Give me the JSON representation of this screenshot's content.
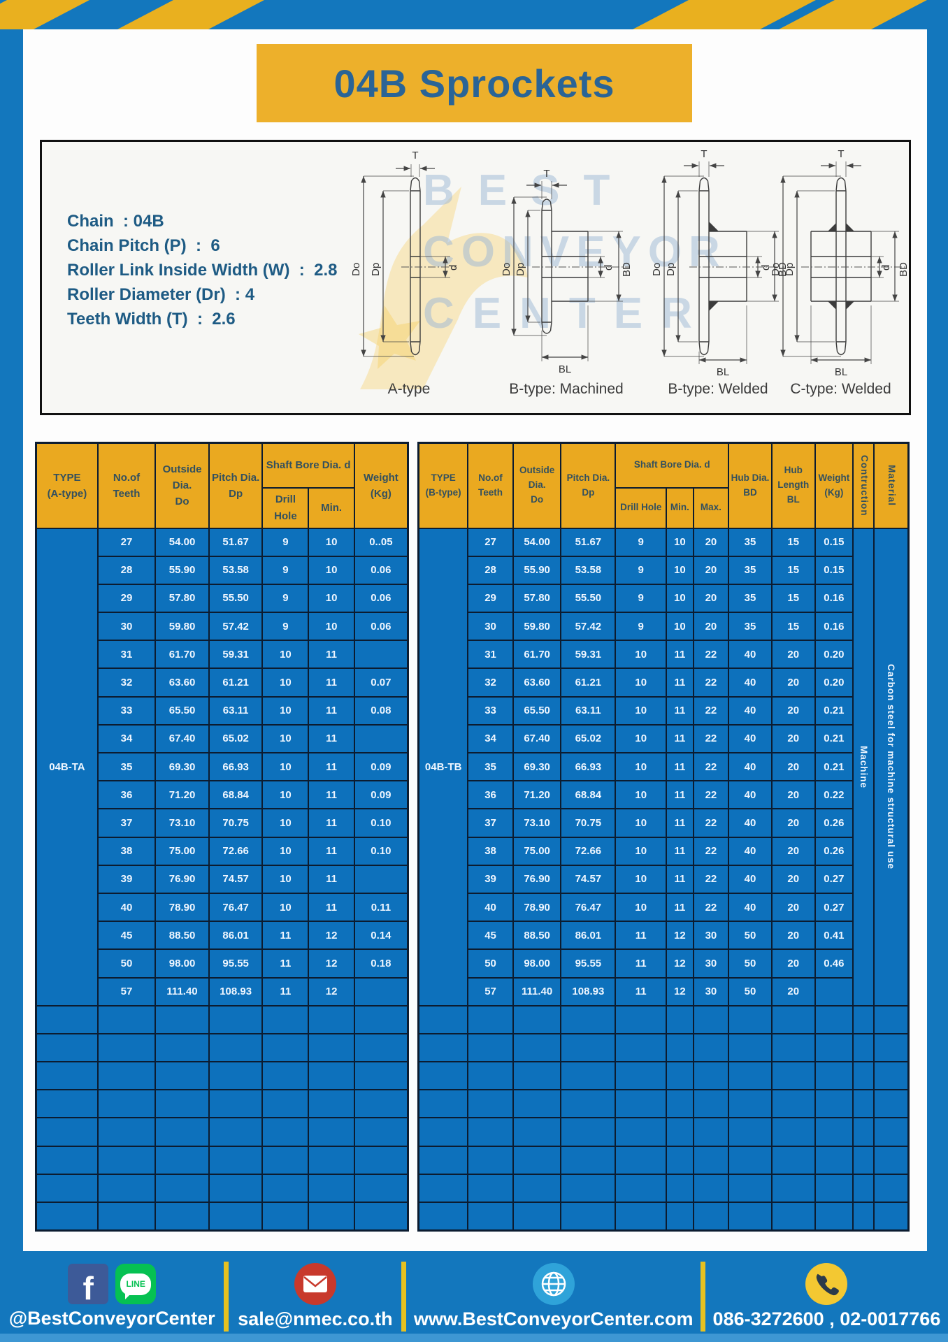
{
  "title": "04B Sprockets",
  "specs": {
    "lines": [
      "Chain  : 04B",
      "Chain Pitch (P)  :  6",
      "Roller Link Inside Width (W)  :  2.8",
      "Roller Diameter (Dr)  : 4",
      "Teeth Width (T)  :  2.6"
    ]
  },
  "watermark": {
    "lines": [
      "BEST",
      "CONVEYOR",
      "CENTER"
    ]
  },
  "diagrams": {
    "dims": {
      "t": "T",
      "do": "Do",
      "dp": "Dp",
      "d": "d",
      "bd": "BD",
      "bl": "BL"
    },
    "captions": [
      "A-type",
      "B-type: Machined",
      "B-type: Welded",
      "C-type: Welded"
    ]
  },
  "tables": {
    "left": {
      "type_label": "04B-TA",
      "headers": {
        "type": "TYPE\n(A-type)",
        "teeth": "No.of\nTeeth",
        "outside_dia": "Outside\nDia.\nDo",
        "pitch_dia": "Pitch Dia.\nDp",
        "shaft_bore": "Shaft Bore Dia. d",
        "drill": "Drill Hole",
        "min": "Min.",
        "weight": "Weight\n(Kg)"
      },
      "rows": [
        [
          "27",
          "54.00",
          "51.67",
          "9",
          "10",
          "0..05"
        ],
        [
          "28",
          "55.90",
          "53.58",
          "9",
          "10",
          "0.06"
        ],
        [
          "29",
          "57.80",
          "55.50",
          "9",
          "10",
          "0.06"
        ],
        [
          "30",
          "59.80",
          "57.42",
          "9",
          "10",
          "0.06"
        ],
        [
          "31",
          "61.70",
          "59.31",
          "10",
          "11",
          ""
        ],
        [
          "32",
          "63.60",
          "61.21",
          "10",
          "11",
          "0.07"
        ],
        [
          "33",
          "65.50",
          "63.11",
          "10",
          "11",
          "0.08"
        ],
        [
          "34",
          "67.40",
          "65.02",
          "10",
          "11",
          ""
        ],
        [
          "35",
          "69.30",
          "66.93",
          "10",
          "11",
          "0.09"
        ],
        [
          "36",
          "71.20",
          "68.84",
          "10",
          "11",
          "0.09"
        ],
        [
          "37",
          "73.10",
          "70.75",
          "10",
          "11",
          "0.10"
        ],
        [
          "38",
          "75.00",
          "72.66",
          "10",
          "11",
          "0.10"
        ],
        [
          "39",
          "76.90",
          "74.57",
          "10",
          "11",
          ""
        ],
        [
          "40",
          "78.90",
          "76.47",
          "10",
          "11",
          "0.11"
        ],
        [
          "45",
          "88.50",
          "86.01",
          "11",
          "12",
          "0.14"
        ],
        [
          "50",
          "98.00",
          "95.55",
          "11",
          "12",
          "0.18"
        ],
        [
          "57",
          "111.40",
          "108.93",
          "11",
          "12",
          ""
        ]
      ],
      "empty_rows": 8
    },
    "right": {
      "type_label": "04B-TB",
      "construction": "Machine",
      "material": "Carbon steel for machine structural use",
      "headers": {
        "type": "TYPE\n(B-type)",
        "teeth": "No.of\nTeeth",
        "outside_dia": "Outside\nDia.\nDo",
        "pitch_dia": "Pitch Dia.\nDp",
        "shaft_bore": "Shaft Bore Dia. d",
        "drill": "Drill Hole",
        "min": "Min.",
        "max": "Max.",
        "hub_dia": "Hub Dia.\nBD",
        "hub_len": "Hub\nLength\nBL",
        "weight": "Weight\n(Kg)",
        "construction": "Contruction",
        "material": "Material"
      },
      "rows": [
        [
          "27",
          "54.00",
          "51.67",
          "9",
          "10",
          "20",
          "35",
          "15",
          "0.15"
        ],
        [
          "28",
          "55.90",
          "53.58",
          "9",
          "10",
          "20",
          "35",
          "15",
          "0.15"
        ],
        [
          "29",
          "57.80",
          "55.50",
          "9",
          "10",
          "20",
          "35",
          "15",
          "0.16"
        ],
        [
          "30",
          "59.80",
          "57.42",
          "9",
          "10",
          "20",
          "35",
          "15",
          "0.16"
        ],
        [
          "31",
          "61.70",
          "59.31",
          "10",
          "11",
          "22",
          "40",
          "20",
          "0.20"
        ],
        [
          "32",
          "63.60",
          "61.21",
          "10",
          "11",
          "22",
          "40",
          "20",
          "0.20"
        ],
        [
          "33",
          "65.50",
          "63.11",
          "10",
          "11",
          "22",
          "40",
          "20",
          "0.21"
        ],
        [
          "34",
          "67.40",
          "65.02",
          "10",
          "11",
          "22",
          "40",
          "20",
          "0.21"
        ],
        [
          "35",
          "69.30",
          "66.93",
          "10",
          "11",
          "22",
          "40",
          "20",
          "0.21"
        ],
        [
          "36",
          "71.20",
          "68.84",
          "10",
          "11",
          "22",
          "40",
          "20",
          "0.22"
        ],
        [
          "37",
          "73.10",
          "70.75",
          "10",
          "11",
          "22",
          "40",
          "20",
          "0.26"
        ],
        [
          "38",
          "75.00",
          "72.66",
          "10",
          "11",
          "22",
          "40",
          "20",
          "0.26"
        ],
        [
          "39",
          "76.90",
          "74.57",
          "10",
          "11",
          "22",
          "40",
          "20",
          "0.27"
        ],
        [
          "40",
          "78.90",
          "76.47",
          "10",
          "11",
          "22",
          "40",
          "20",
          "0.27"
        ],
        [
          "45",
          "88.50",
          "86.01",
          "11",
          "12",
          "30",
          "50",
          "20",
          "0.41"
        ],
        [
          "50",
          "98.00",
          "95.55",
          "11",
          "12",
          "30",
          "50",
          "20",
          "0.46"
        ],
        [
          "57",
          "111.40",
          "108.93",
          "11",
          "12",
          "30",
          "50",
          "20",
          ""
        ]
      ],
      "empty_rows": 8
    }
  },
  "footer": {
    "line_text": "LINE",
    "items": [
      {
        "label": "@BestConveyorCenter",
        "icons": [
          "facebook-icon",
          "line-icon"
        ]
      },
      {
        "label": "sale@nmec.co.th",
        "icons": [
          "email-icon"
        ]
      },
      {
        "label": "www.BestConveyorCenter.com",
        "icons": [
          "globe-icon"
        ]
      },
      {
        "label": "086-3272600 , 02-0017766",
        "icons": [
          "phone-icon"
        ]
      }
    ]
  },
  "colors": {
    "page_blue": "#1377bd",
    "table_cell_blue": "#0d71bc",
    "accent_yellow": "#eaa920",
    "title_box_yellow": "#edb02b",
    "stripe_yellow": "#e9b01f",
    "separator_yellow": "#e7c120",
    "title_text_blue": "#2a6496",
    "spec_text_blue": "#1e5b84",
    "border_dark": "#0c1c30",
    "facebook_blue": "#3d5a98",
    "line_green": "#06c152",
    "email_red": "#c8392c",
    "globe_blue": "#2fa3d9",
    "phone_yellow": "#f3c832"
  }
}
